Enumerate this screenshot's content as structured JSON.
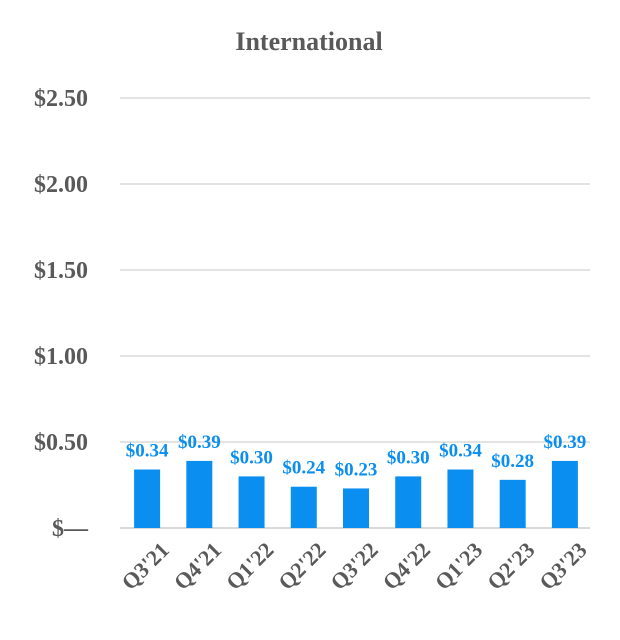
{
  "chart_data": {
    "type": "bar",
    "title": "International",
    "categories": [
      "Q3'21",
      "Q4'21",
      "Q1'22",
      "Q2'22",
      "Q3'22",
      "Q4'22",
      "Q1'23",
      "Q2'23",
      "Q3'23"
    ],
    "values": [
      0.34,
      0.39,
      0.3,
      0.24,
      0.23,
      0.3,
      0.34,
      0.28,
      0.39
    ],
    "data_labels": [
      "$0.34",
      "$0.39",
      "$0.30",
      "$0.24",
      "$0.23",
      "$0.30",
      "$0.34",
      "$0.28",
      "$0.39"
    ],
    "y_ticks": [
      0,
      0.5,
      1.0,
      1.5,
      2.0,
      2.5
    ],
    "y_tick_labels": [
      "$—",
      "$0.50",
      "$1.00",
      "$1.50",
      "$2.00",
      "$2.50"
    ],
    "ylim": [
      0,
      2.5
    ],
    "xlabel": "",
    "ylabel": "",
    "grid": true,
    "legend": "none",
    "colors": {
      "bar": "#0a8ff0",
      "data_label": "#0a8ff0",
      "text": "#595959",
      "gridline": "#e3e3e3"
    }
  }
}
